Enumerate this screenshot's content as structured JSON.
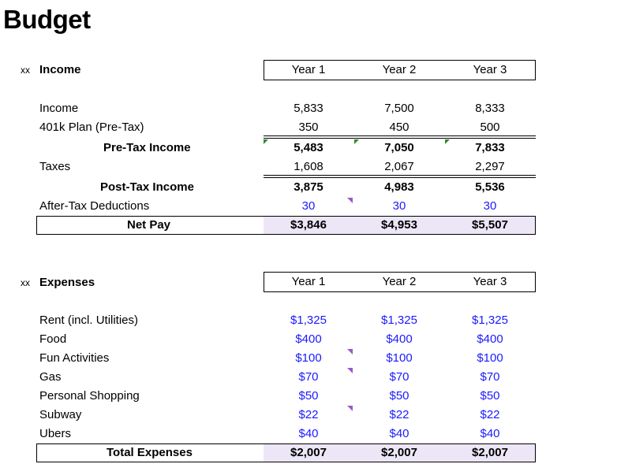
{
  "title": "Budget",
  "income": {
    "marker": "xx",
    "section_label": "Income",
    "years": [
      "Year 1",
      "Year 2",
      "Year 3"
    ],
    "rows": [
      {
        "label": "Income",
        "values": [
          "5,833",
          "7,500",
          "8,333"
        ]
      },
      {
        "label": "401k Plan (Pre-Tax)",
        "values": [
          "350",
          "450",
          "500"
        ]
      },
      {
        "label": "Pre-Tax Income",
        "values": [
          "5,483",
          "7,050",
          "7,833"
        ]
      },
      {
        "label": "Taxes",
        "values": [
          "1,608",
          "2,067",
          "2,297"
        ]
      },
      {
        "label": "Post-Tax Income",
        "values": [
          "3,875",
          "4,983",
          "5,536"
        ]
      },
      {
        "label": "After-Tax Deductions",
        "values": [
          "30",
          "30",
          "30"
        ]
      }
    ],
    "net_pay": {
      "label": "Net Pay",
      "values": [
        "$3,846",
        "$4,953",
        "$5,507"
      ]
    }
  },
  "expenses": {
    "marker": "xx",
    "section_label": "Expenses",
    "years": [
      "Year 1",
      "Year 2",
      "Year 3"
    ],
    "rows": [
      {
        "label": "Rent (incl. Utilities)",
        "values": [
          "$1,325",
          "$1,325",
          "$1,325"
        ]
      },
      {
        "label": "Food",
        "values": [
          "$400",
          "$400",
          "$400"
        ]
      },
      {
        "label": "Fun Activities",
        "values": [
          "$100",
          "$100",
          "$100"
        ]
      },
      {
        "label": "Gas",
        "values": [
          "$70",
          "$70",
          "$70"
        ]
      },
      {
        "label": "Personal Shopping",
        "values": [
          "$50",
          "$50",
          "$50"
        ]
      },
      {
        "label": "Subway",
        "values": [
          "$22",
          "$22",
          "$22"
        ]
      },
      {
        "label": "Ubers",
        "values": [
          "$40",
          "$40",
          "$40"
        ]
      }
    ],
    "total": {
      "label": "Total Expenses",
      "values": [
        "$2,007",
        "$2,007",
        "$2,007"
      ]
    }
  },
  "colors": {
    "input_blue": "#1a1aff",
    "total_shade": "#ece6f6",
    "comment_flag": "#9b59c9",
    "error_triangle": "#2e8b2e"
  }
}
